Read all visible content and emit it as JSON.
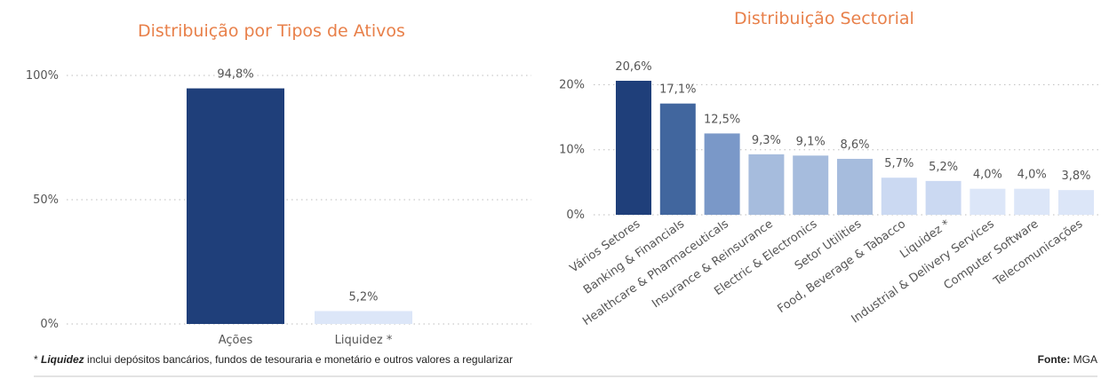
{
  "chart_data": [
    {
      "type": "bar",
      "title": "Distribuição por Tipos de Ativos",
      "categories": [
        "Ações",
        "Liquidez *"
      ],
      "values": [
        94.8,
        5.2
      ],
      "data_labels": [
        "94,8%",
        "5,2%"
      ],
      "bar_colors": [
        "#1F3F7A",
        "#DCE6F8"
      ],
      "y_ticks": [
        0,
        50,
        100
      ],
      "y_tick_labels": [
        "0%",
        "50%",
        "100%"
      ],
      "ylim": [
        0,
        100
      ],
      "xlabel": "",
      "ylabel": "",
      "grid": true
    },
    {
      "type": "bar",
      "title": "Distribuição Sectorial",
      "categories": [
        "Vários Setores",
        "Banking & Financials",
        "Healthcare & Pharmaceuticals",
        "Insurance & Reinsurance",
        "Electric & Electronics",
        "Setor Utilities",
        "Food, Beverage & Tabacco",
        "Liquidez *",
        "Industrial & Delivery Services",
        "Computer Software",
        "Telecomunicações"
      ],
      "values": [
        20.6,
        17.1,
        12.5,
        9.3,
        9.1,
        8.6,
        5.7,
        5.2,
        4.0,
        4.0,
        3.8
      ],
      "data_labels": [
        "20,6%",
        "17,1%",
        "12,5%",
        "9,3%",
        "9,1%",
        "8,6%",
        "5,7%",
        "5,2%",
        "4,0%",
        "4,0%",
        "3,8%"
      ],
      "bar_colors": [
        "#1F3F7A",
        "#41669E",
        "#7A98C8",
        "#A6BCDD",
        "#A6BCDD",
        "#A6BCDD",
        "#CBD9F2",
        "#CBD9F2",
        "#DCE6F8",
        "#DCE6F8",
        "#DCE6F8"
      ],
      "y_ticks": [
        0,
        10,
        20
      ],
      "y_tick_labels": [
        "0%",
        "10%",
        "20%"
      ],
      "ylim": [
        0,
        20.6
      ],
      "xlabel": "",
      "ylabel": "",
      "grid": true
    }
  ],
  "footnote": {
    "marker": "* ",
    "term": "Liquidez",
    "text": " inclui depósitos bancários, fundos de tesouraria e monetário e outros valores a regularizar"
  },
  "source": {
    "label": "Fonte:",
    "value": " MGA"
  },
  "colors": {
    "title": "#E8804A",
    "text": "#555555"
  }
}
